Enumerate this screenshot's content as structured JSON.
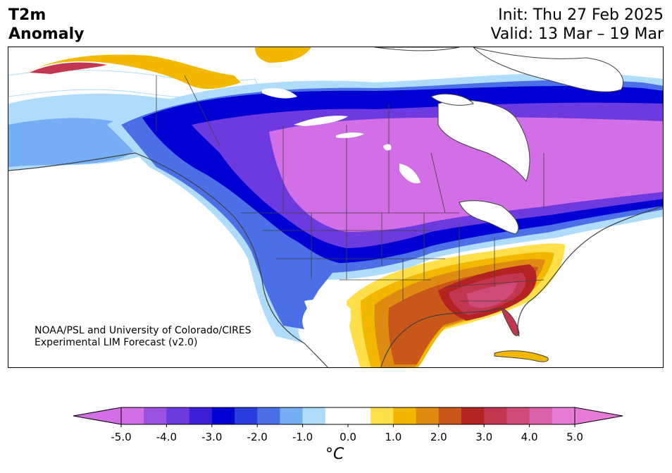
{
  "title": {
    "line1": "T2m",
    "line2": "Anomaly"
  },
  "init_label": "Init: Thu 27 Feb 2025",
  "valid_label": "Valid: 13 Mar – 19 Mar",
  "credit": {
    "line1": "NOAA/PSL and University of Colorado/CIRES",
    "line2": "Experimental LIM Forecast (v2.0)"
  },
  "colorbar": {
    "unit": "°C",
    "tick_labels": [
      "-5.0",
      "-4.0",
      "-3.0",
      "-2.0",
      "-1.0",
      "0.0",
      "1.0",
      "2.0",
      "3.0",
      "4.0",
      "5.0"
    ],
    "ticks": [
      -5,
      -4,
      -3,
      -2,
      -1,
      0,
      1,
      2,
      3,
      4,
      5
    ],
    "range": [
      -5,
      5
    ],
    "bins": [
      {
        "lo": -5.0,
        "hi": -4.5,
        "color": "#d26ee6"
      },
      {
        "lo": -4.5,
        "hi": -4.0,
        "color": "#9a50e0"
      },
      {
        "lo": -4.0,
        "hi": -3.5,
        "color": "#6c3ade"
      },
      {
        "lo": -3.5,
        "hi": -3.0,
        "color": "#3d1fd8"
      },
      {
        "lo": -3.0,
        "hi": -2.5,
        "color": "#0000d2"
      },
      {
        "lo": -2.5,
        "hi": -2.0,
        "color": "#2a3bdc"
      },
      {
        "lo": -2.0,
        "hi": -1.5,
        "color": "#4a6fe6"
      },
      {
        "lo": -1.5,
        "hi": -1.0,
        "color": "#75aef2"
      },
      {
        "lo": -1.0,
        "hi": -0.5,
        "color": "#aedcfa"
      },
      {
        "lo": -0.5,
        "hi": 0.0,
        "color": "#ffffff"
      },
      {
        "lo": 0.0,
        "hi": 0.5,
        "color": "#ffffff"
      },
      {
        "lo": 0.5,
        "hi": 1.0,
        "color": "#ffe04a"
      },
      {
        "lo": 1.0,
        "hi": 1.5,
        "color": "#f2b800"
      },
      {
        "lo": 1.5,
        "hi": 2.0,
        "color": "#df8a10"
      },
      {
        "lo": 2.0,
        "hi": 2.5,
        "color": "#c9571a"
      },
      {
        "lo": 2.5,
        "hi": 3.0,
        "color": "#b52222"
      },
      {
        "lo": 3.0,
        "hi": 3.5,
        "color": "#c33650"
      },
      {
        "lo": 3.5,
        "hi": 4.0,
        "color": "#cf4a78"
      },
      {
        "lo": 4.0,
        "hi": 4.5,
        "color": "#db62a8"
      },
      {
        "lo": 4.5,
        "hi": 5.0,
        "color": "#e87ad8"
      }
    ],
    "extend": "both"
  },
  "map": {
    "region": "North America",
    "projection": "Lambert conformal",
    "field": "2 m temperature anomaly"
  }
}
